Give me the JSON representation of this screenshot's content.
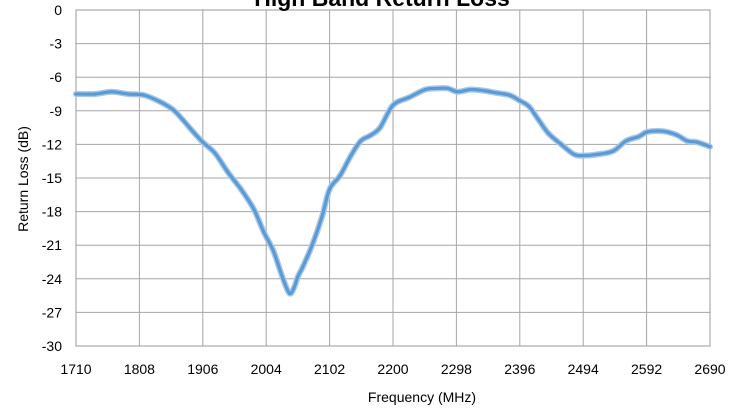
{
  "chart_data": {
    "type": "line",
    "title": "High Band Return Loss",
    "xlabel": "Frequency (MHz)",
    "ylabel": "Return Loss (dB)",
    "xlim": [
      1710,
      2690
    ],
    "ylim": [
      -30,
      0
    ],
    "grid": true,
    "legend": "none",
    "x_ticks": [
      "1710",
      "1808",
      "1906",
      "2004",
      "2102",
      "2200",
      "2298",
      "2396",
      "2494",
      "2592",
      "2690"
    ],
    "y_ticks": [
      "0",
      "-3",
      "-6",
      "-9",
      "-12",
      "-15",
      "-18",
      "-21",
      "-24",
      "-27",
      "-30"
    ],
    "series": [
      {
        "name": "",
        "color": "#5b9bd5",
        "x": [
          1710,
          1740,
          1765,
          1790,
          1815,
          1840,
          1860,
          1875,
          1890,
          1906,
          1925,
          1945,
          1965,
          1985,
          2000,
          2015,
          2030,
          2040,
          2047,
          2053,
          2060,
          2075,
          2090,
          2102,
          2118,
          2135,
          2150,
          2165,
          2180,
          2200,
          2225,
          2250,
          2268,
          2285,
          2300,
          2320,
          2340,
          2360,
          2380,
          2396,
          2410,
          2425,
          2440,
          2460,
          2480,
          2494,
          2515,
          2540,
          2560,
          2580,
          2592,
          2610,
          2625,
          2640,
          2655,
          2670,
          2690
        ],
        "values": [
          -7.5,
          -7.5,
          -7.3,
          -7.5,
          -7.6,
          -8.2,
          -8.9,
          -9.8,
          -10.8,
          -11.8,
          -12.8,
          -14.5,
          -16.0,
          -17.8,
          -19.8,
          -21.5,
          -24.0,
          -25.3,
          -24.8,
          -23.8,
          -23.0,
          -21.0,
          -18.5,
          -16.0,
          -14.8,
          -13.0,
          -11.7,
          -11.2,
          -10.5,
          -8.5,
          -7.8,
          -7.1,
          -7.0,
          -7.0,
          -7.3,
          -7.1,
          -7.2,
          -7.4,
          -7.6,
          -8.1,
          -8.6,
          -9.8,
          -11.0,
          -12.0,
          -12.9,
          -13.0,
          -12.9,
          -12.6,
          -11.7,
          -11.3,
          -10.9,
          -10.8,
          -10.9,
          -11.2,
          -11.7,
          -11.8,
          -12.2
        ]
      }
    ]
  }
}
